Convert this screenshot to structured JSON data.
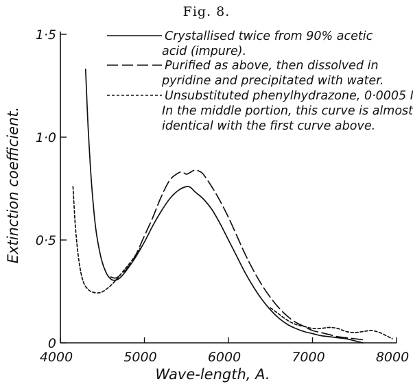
{
  "figure_label": "Fig. 8.",
  "chart_data": {
    "type": "line",
    "xlabel": "Wave-length, A.",
    "ylabel": "Extinction coefficient.",
    "xlim": [
      4000,
      8000
    ],
    "ylim": [
      0,
      1.5
    ],
    "x_ticks": [
      4000,
      5000,
      6000,
      7000,
      8000
    ],
    "x_tick_labels": [
      "4000",
      "5000",
      "6000",
      "7000",
      "8000"
    ],
    "y_ticks": [
      0,
      0.5,
      1.0,
      1.5
    ],
    "y_tick_labels": [
      "0",
      "0·5",
      "1·0",
      "1·5"
    ],
    "grid": false,
    "legend_position": "top-right",
    "series": [
      {
        "name": "Crystallised twice from 90% acetic acid (impure).",
        "legend_lines": [
          "Crystallised twice from 90% acetic",
          "acid (impure)."
        ],
        "style": "solid",
        "x": [
          4300,
          4330,
          4370,
          4420,
          4480,
          4540,
          4600,
          4660,
          4720,
          4800,
          4900,
          5000,
          5100,
          5200,
          5300,
          5400,
          5500,
          5550,
          5600,
          5700,
          5800,
          5900,
          6000,
          6100,
          6200,
          6300,
          6400,
          6500,
          6600,
          6700,
          6800,
          6900,
          7000,
          7100,
          7200,
          7300,
          7400,
          7500,
          7600
        ],
        "y": [
          1.33,
          1.05,
          0.78,
          0.56,
          0.42,
          0.345,
          0.31,
          0.305,
          0.32,
          0.36,
          0.42,
          0.49,
          0.57,
          0.64,
          0.7,
          0.74,
          0.76,
          0.755,
          0.735,
          0.7,
          0.65,
          0.58,
          0.5,
          0.42,
          0.34,
          0.27,
          0.21,
          0.16,
          0.12,
          0.09,
          0.07,
          0.055,
          0.045,
          0.035,
          0.03,
          0.025,
          0.02,
          0.01,
          0.0
        ]
      },
      {
        "name": "Purified as above, then dissolved in pyridine and precipitated with water.",
        "legend_lines": [
          "Purified as above, then dissolved in",
          "pyridine and precipitated with water."
        ],
        "style": "dashed",
        "x": [
          4600,
          4650,
          4700,
          4800,
          4900,
          5000,
          5100,
          5200,
          5300,
          5400,
          5450,
          5500,
          5550,
          5600,
          5650,
          5700,
          5800,
          5900,
          6000,
          6100,
          6200,
          6300,
          6400,
          6500,
          6600,
          6700,
          6800,
          6900,
          7000,
          7100,
          7200,
          7300,
          7400,
          7500,
          7600
        ],
        "y": [
          0.32,
          0.315,
          0.325,
          0.365,
          0.43,
          0.52,
          0.61,
          0.71,
          0.79,
          0.825,
          0.83,
          0.82,
          0.83,
          0.84,
          0.835,
          0.82,
          0.76,
          0.69,
          0.61,
          0.52,
          0.43,
          0.35,
          0.28,
          0.22,
          0.17,
          0.13,
          0.1,
          0.08,
          0.06,
          0.05,
          0.04,
          0.03,
          0.025,
          0.02,
          0.015
        ]
      },
      {
        "name": "Unsubstituted phenylhydrazone, 0·0005 M. In the middle portion, this curve is almost identical with the first curve above.",
        "legend_lines": [
          "Unsubstituted phenylhydrazone, 0·0005 M.",
          "In the middle portion, this curve is almost",
          "identical with the first curve above."
        ],
        "style": "dotted",
        "x": [
          4150,
          4180,
          4220,
          4270,
          4330,
          4400,
          4480,
          4560,
          4650,
          4750,
          4850,
          4950,
          6500,
          6600,
          6700,
          6800,
          6900,
          7000,
          7100,
          7200,
          7300,
          7400,
          7500,
          7600,
          7700,
          7800,
          7900,
          7950
        ],
        "y": [
          0.76,
          0.56,
          0.4,
          0.3,
          0.26,
          0.245,
          0.245,
          0.265,
          0.3,
          0.35,
          0.4,
          0.46,
          0.17,
          0.14,
          0.11,
          0.09,
          0.08,
          0.07,
          0.07,
          0.075,
          0.07,
          0.055,
          0.05,
          0.055,
          0.06,
          0.05,
          0.03,
          0.02
        ]
      }
    ]
  }
}
